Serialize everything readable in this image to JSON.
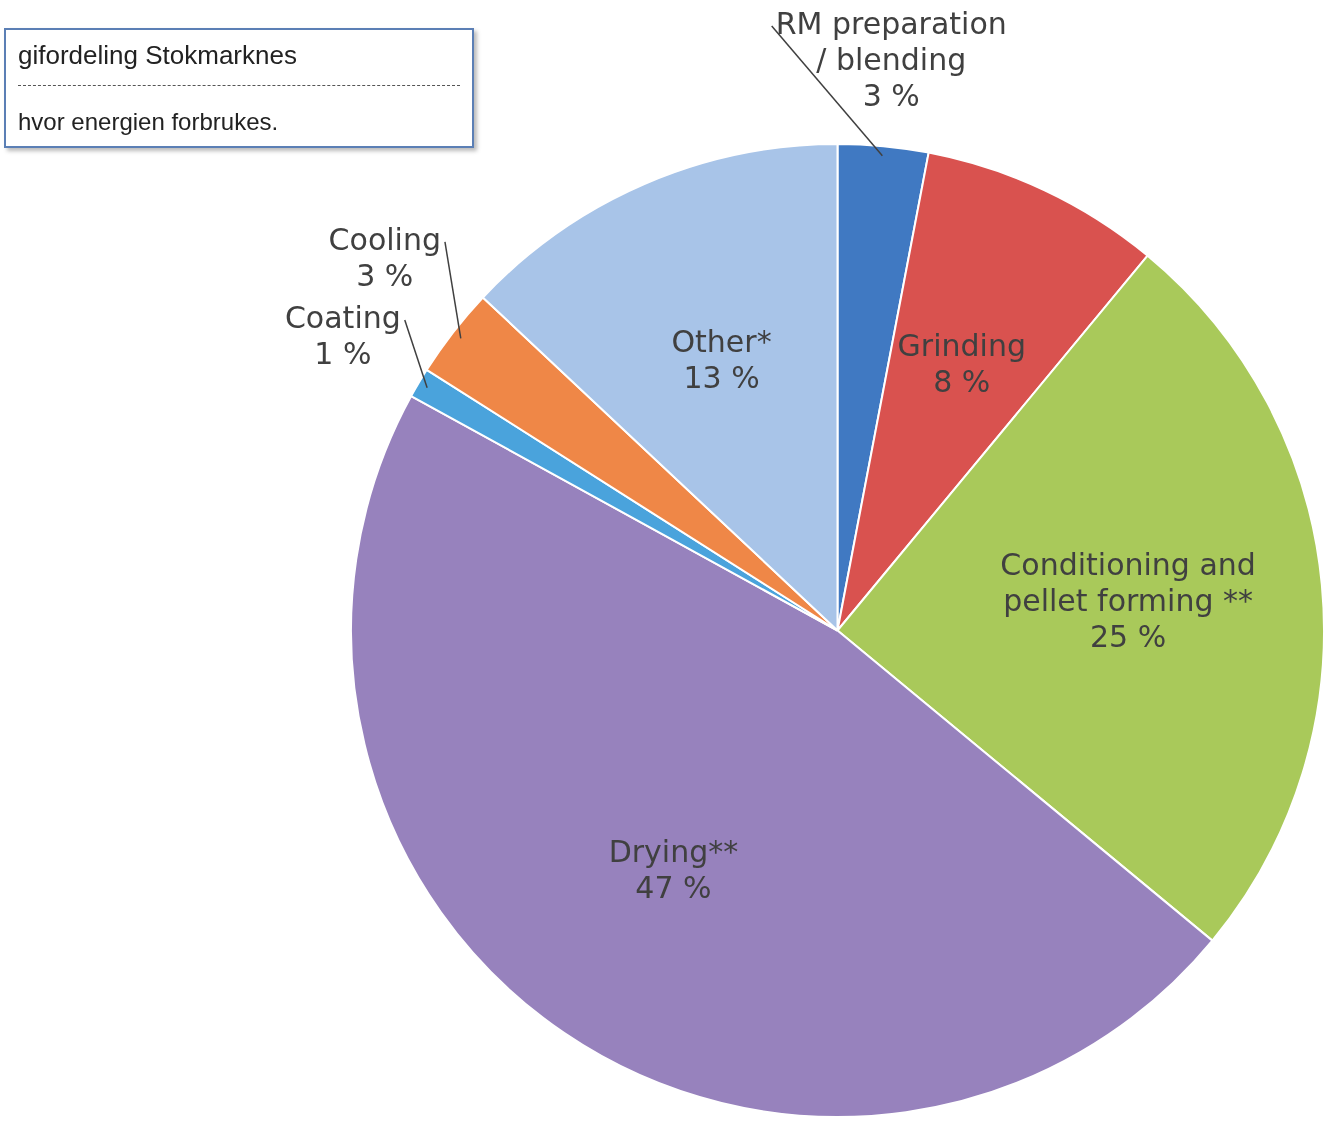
{
  "chart_data": {
    "type": "pie",
    "title": "gifordeling Stokmarknes",
    "annotations": [
      "hvor energien forbrukes."
    ],
    "categories": [
      "RM preparation / blending",
      "Grinding",
      "Conditioning and pellet forming **",
      "Drying**",
      "Coating",
      "Cooling",
      "Other*"
    ],
    "values": [
      3,
      8,
      25,
      47,
      1,
      3,
      13
    ],
    "value_labels": [
      "3 %",
      "8 %",
      "25 %",
      "47 %",
      "1 %",
      "3 %",
      "13 %"
    ],
    "colors": [
      "#4079c2",
      "#d9524f",
      "#a9c95a",
      "#9782bd",
      "#4aa3dc",
      "#ef8747",
      "#a8c4e8"
    ]
  }
}
